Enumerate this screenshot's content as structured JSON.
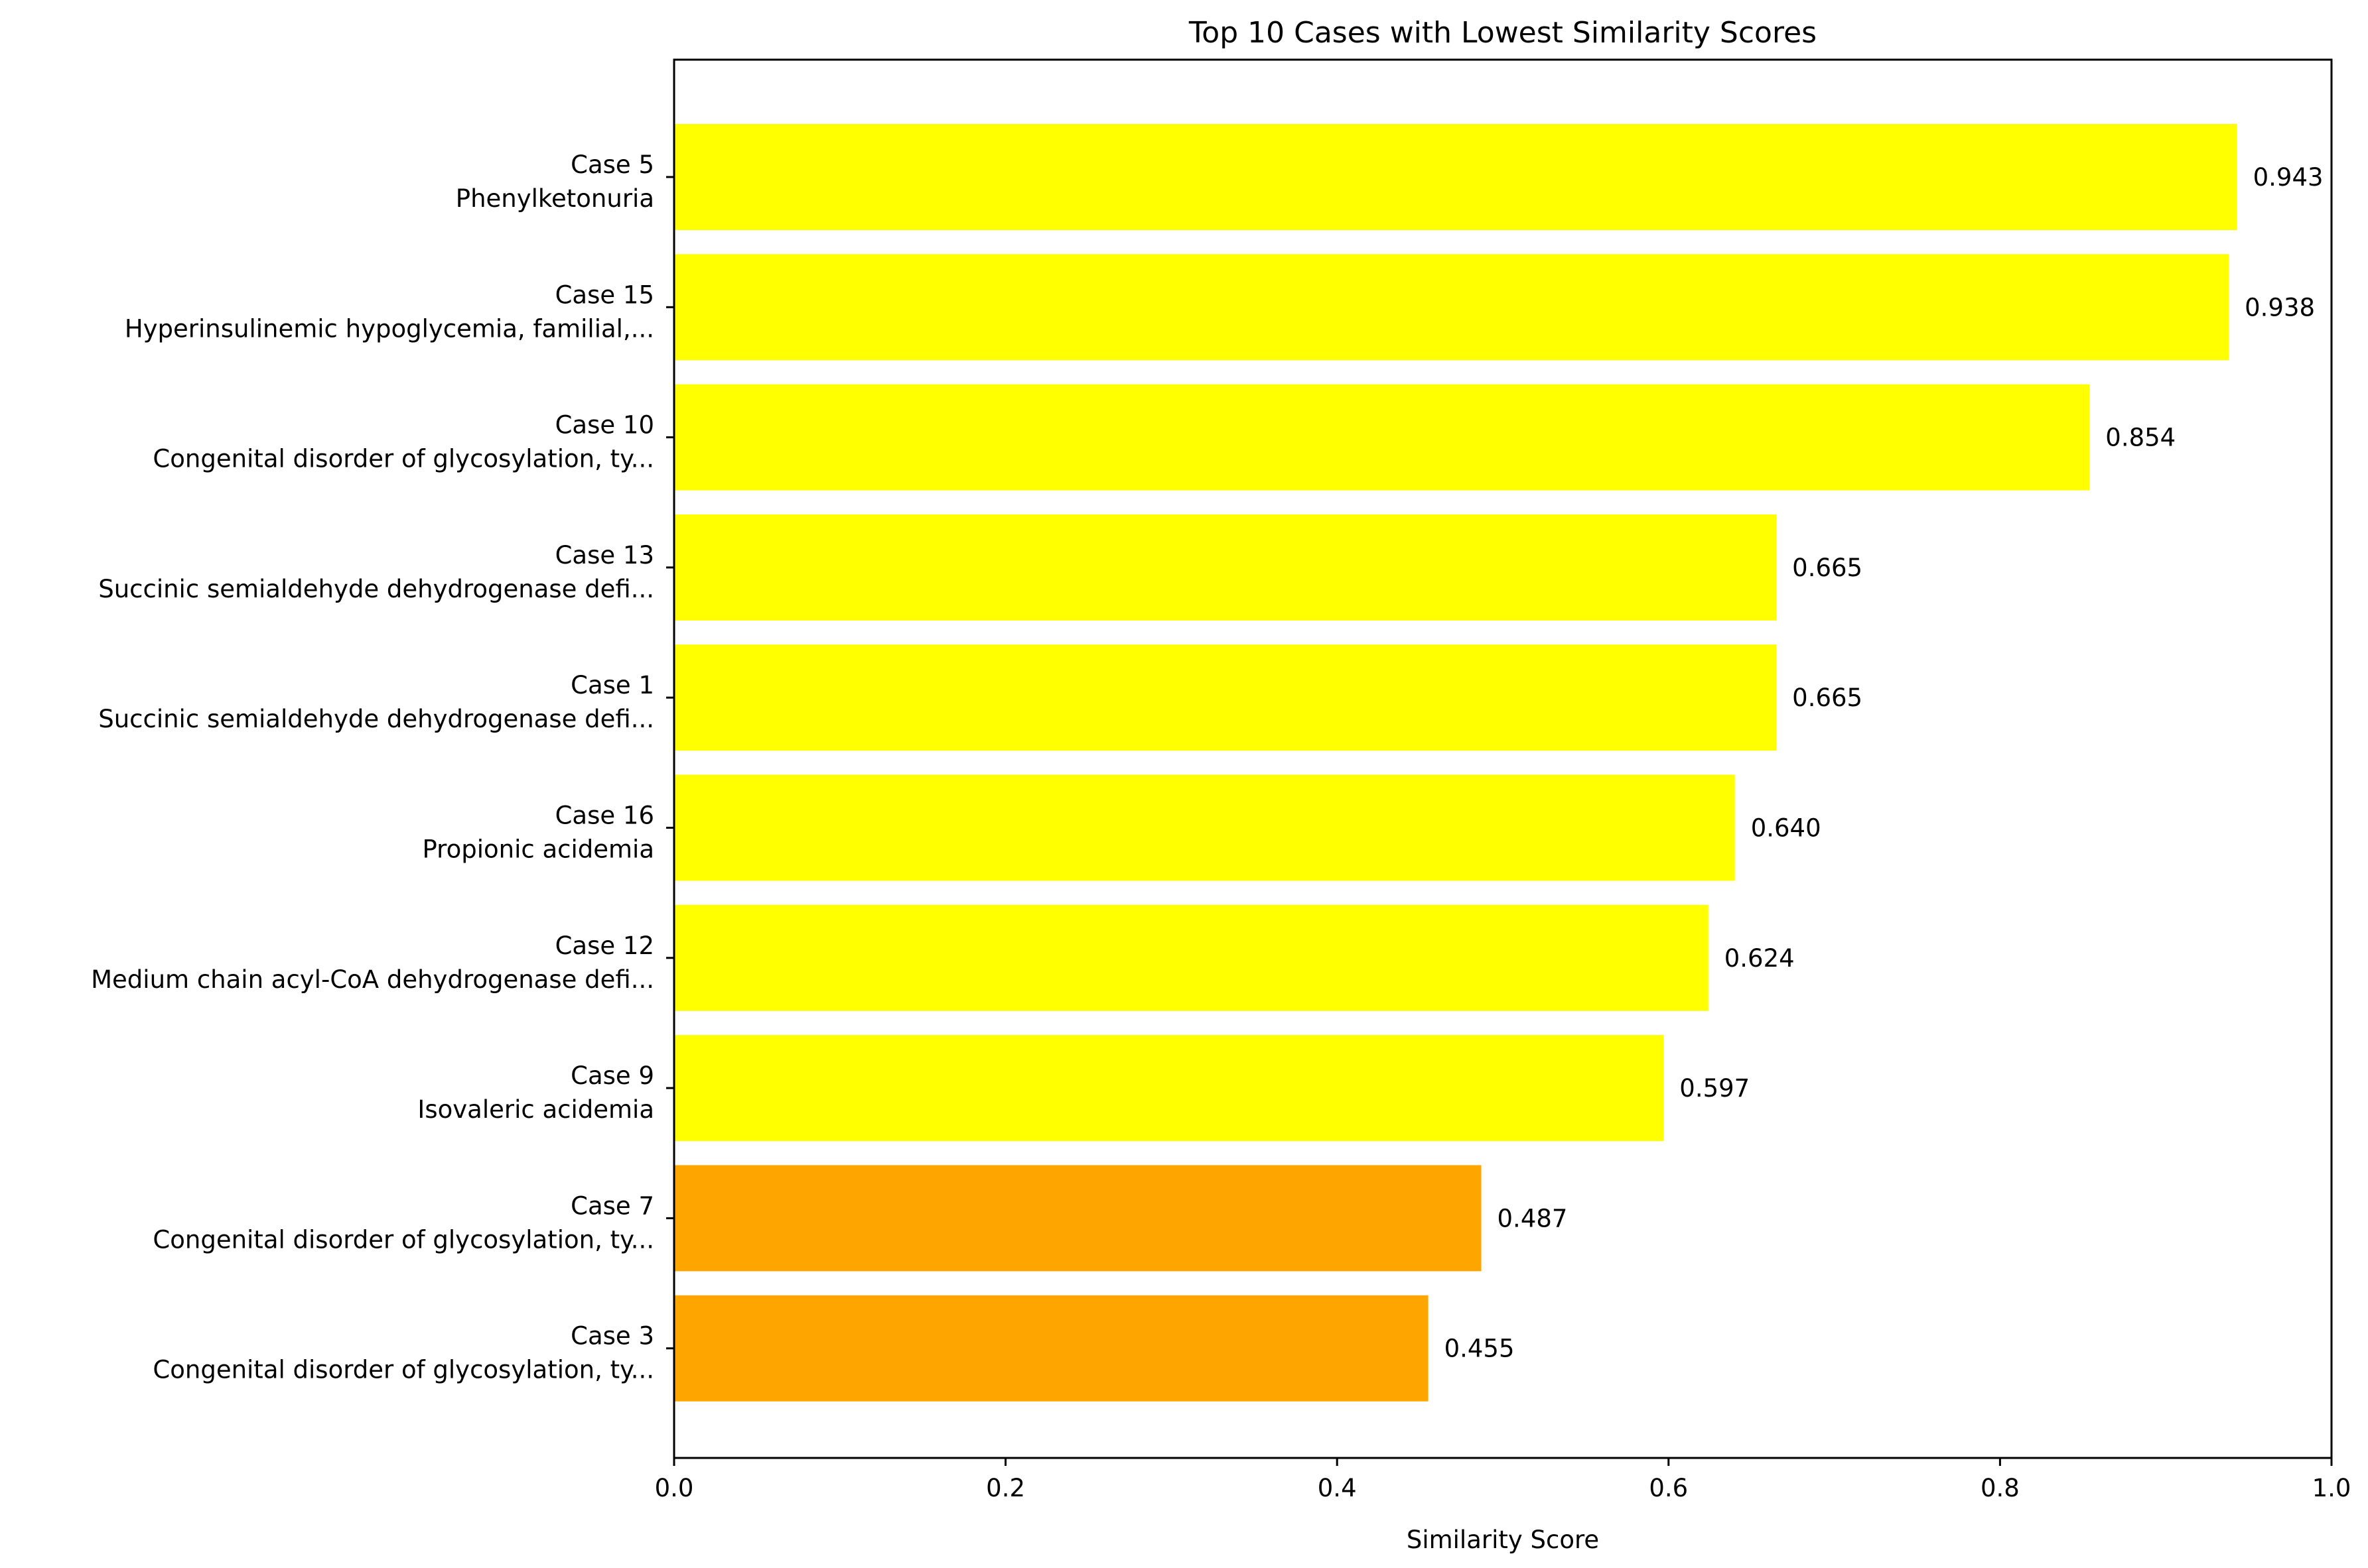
{
  "chart_data": {
    "type": "bar",
    "orientation": "horizontal",
    "title": "Top 10 Cases with Lowest Similarity Scores",
    "xlabel": "Similarity Score",
    "ylabel": "",
    "xlim": [
      0,
      1.0
    ],
    "grid": false,
    "x_ticks": [
      "0.0",
      "0.2",
      "0.4",
      "0.6",
      "0.8",
      "1.0"
    ],
    "x_tick_values": [
      0,
      0.2,
      0.4,
      0.6,
      0.8,
      1.0
    ],
    "categories": [
      {
        "case": "Case 5",
        "disease": "Phenylketonuria"
      },
      {
        "case": "Case 15",
        "disease": "Hyperinsulinemic hypoglycemia, familial,..."
      },
      {
        "case": "Case 10",
        "disease": "Congenital disorder of glycosylation, ty..."
      },
      {
        "case": "Case 13",
        "disease": "Succinic semialdehyde dehydrogenase defi..."
      },
      {
        "case": "Case 1",
        "disease": "Succinic semialdehyde dehydrogenase defi..."
      },
      {
        "case": "Case 16",
        "disease": "Propionic acidemia"
      },
      {
        "case": "Case 12",
        "disease": "Medium chain acyl-CoA dehydrogenase defi..."
      },
      {
        "case": "Case 9",
        "disease": "Isovaleric acidemia"
      },
      {
        "case": "Case 7",
        "disease": "Congenital disorder of glycosylation, ty..."
      },
      {
        "case": "Case 3",
        "disease": "Congenital disorder of glycosylation, ty..."
      }
    ],
    "values": [
      0.943,
      0.938,
      0.854,
      0.665,
      0.665,
      0.64,
      0.624,
      0.597,
      0.487,
      0.455
    ],
    "value_labels": [
      "0.943",
      "0.938",
      "0.854",
      "0.665",
      "0.665",
      "0.640",
      "0.624",
      "0.597",
      "0.487",
      "0.455"
    ],
    "bar_colors": [
      "#ffff00",
      "#ffff00",
      "#ffff00",
      "#ffff00",
      "#ffff00",
      "#ffff00",
      "#ffff00",
      "#ffff00",
      "#ffa500",
      "#ffa500"
    ]
  }
}
